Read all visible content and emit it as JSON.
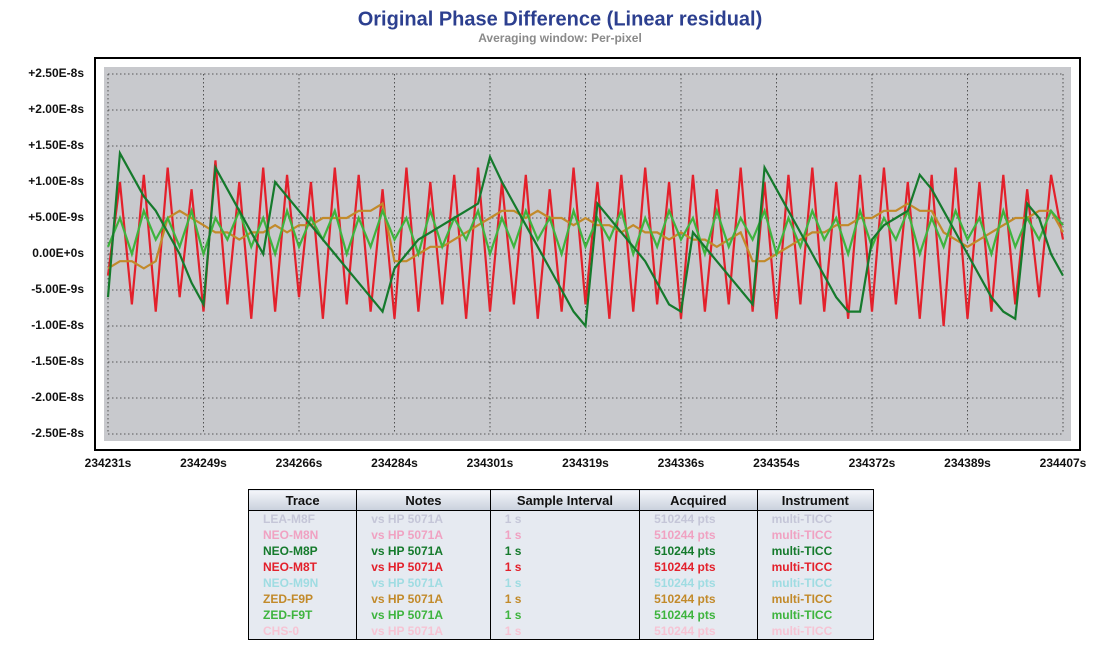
{
  "chart_data": {
    "type": "line",
    "title": "Original Phase Difference (Linear residual)",
    "subtitle": "Averaging window: Per-pixel",
    "x": [
      234231,
      234233.2,
      234235.4,
      234237.6,
      234239.8,
      234242,
      234244.2,
      234246.4,
      234248.6,
      234250.8,
      234253,
      234255.2,
      234257.4,
      234259.6,
      234261.8,
      234264,
      234266.2,
      234268.4,
      234270.6,
      234272.8,
      234275,
      234277.2,
      234279.4,
      234281.6,
      234283.8,
      234286,
      234288.2,
      234290.4,
      234292.6,
      234294.8,
      234297,
      234299.2,
      234301.4,
      234303.6,
      234305.8,
      234308,
      234310.2,
      234312.4,
      234314.6,
      234316.8,
      234319,
      234321.2,
      234323.4,
      234325.6,
      234327.8,
      234330,
      234332.2,
      234334.4,
      234336.6,
      234338.8,
      234341,
      234343.2,
      234345.4,
      234347.6,
      234349.8,
      234352,
      234354.2,
      234356.4,
      234358.6,
      234360.8,
      234363,
      234365.2,
      234367.4,
      234369.6,
      234371.8,
      234374,
      234376.2,
      234378.4,
      234380.6,
      234382.8,
      234385,
      234387.2,
      234389.4,
      234391.6,
      234393.8,
      234396,
      234398.2,
      234400.4,
      234402.6,
      234404.8,
      234407
    ],
    "series": [
      {
        "color": "#e3202b",
        "values": [
          -3e-09,
          1e-08,
          -7e-09,
          1.1e-08,
          -8e-09,
          1.2e-08,
          -6e-09,
          9e-09,
          -8e-09,
          1.3e-08,
          -7e-09,
          1e-08,
          -9e-09,
          1.2e-08,
          -8e-09,
          1.1e-08,
          -6e-09,
          1e-08,
          -9e-09,
          1.2e-08,
          -7e-09,
          1.1e-08,
          -8e-09,
          9e-09,
          -9e-09,
          1.2e-08,
          -8e-09,
          1e-08,
          -7e-09,
          1.1e-08,
          -9e-09,
          1.2e-08,
          -8e-09,
          1e-08,
          -7e-09,
          1.1e-08,
          -9e-09,
          9e-09,
          -8e-09,
          1.2e-08,
          -7e-09,
          1e-08,
          -9e-09,
          1.1e-08,
          -8e-09,
          1.2e-08,
          -7e-09,
          1e-08,
          -9e-09,
          1.1e-08,
          -8e-09,
          9e-09,
          -7e-09,
          1.2e-08,
          -8e-09,
          1e-08,
          -9e-09,
          1.1e-08,
          -7e-09,
          1.2e-08,
          -8e-09,
          1e-08,
          -9e-09,
          1.1e-08,
          -8e-09,
          1.2e-08,
          -7e-09,
          1e-08,
          -9e-09,
          1.1e-08,
          -1e-08,
          1.2e-08,
          -9e-09,
          1e-08,
          -8e-09,
          1.1e-08,
          -7e-09,
          9e-09,
          -6e-09,
          1.1e-08,
          2e-09
        ]
      },
      {
        "color": "#c28a2a",
        "values": [
          -2e-09,
          -1e-09,
          -1e-09,
          -2e-09,
          -1e-09,
          5e-09,
          6e-09,
          5e-09,
          4e-09,
          3e-09,
          3e-09,
          2e-09,
          3e-09,
          3e-09,
          4e-09,
          3e-09,
          4e-09,
          4e-09,
          5e-09,
          5e-09,
          5e-09,
          6e-09,
          6e-09,
          7e-09,
          -1e-09,
          -1e-09,
          0,
          1e-09,
          1e-09,
          2e-09,
          3e-09,
          4e-09,
          5e-09,
          6e-09,
          6e-09,
          5e-09,
          6e-09,
          5e-09,
          5e-09,
          4e-09,
          5e-09,
          4e-09,
          4e-09,
          3e-09,
          4e-09,
          3e-09,
          3e-09,
          2e-09,
          3e-09,
          2e-09,
          2e-09,
          1e-09,
          2e-09,
          3e-09,
          -1e-09,
          -1e-09,
          0,
          1e-09,
          2e-09,
          3e-09,
          3e-09,
          4e-09,
          4e-09,
          5e-09,
          5e-09,
          6e-09,
          6e-09,
          7e-09,
          6e-09,
          6e-09,
          3e-09,
          2e-09,
          1e-09,
          2e-09,
          3e-09,
          4e-09,
          5e-09,
          5e-09,
          6e-09,
          6e-09,
          3e-09
        ]
      },
      {
        "color": "#3eb43e",
        "values": [
          1e-09,
          5e-09,
          0,
          6e-09,
          2e-09,
          5e-09,
          1e-09,
          6e-09,
          0,
          5e-09,
          2e-09,
          6e-09,
          1e-09,
          5e-09,
          0,
          6e-09,
          1e-09,
          5e-09,
          2e-09,
          6e-09,
          0,
          5e-09,
          1e-09,
          6e-09,
          2e-09,
          5e-09,
          0,
          6e-09,
          1e-09,
          5e-09,
          2e-09,
          6e-09,
          0,
          5e-09,
          1e-09,
          6e-09,
          2e-09,
          5e-09,
          0,
          6e-09,
          1e-09,
          5e-09,
          2e-09,
          6e-09,
          0,
          5e-09,
          1e-09,
          6e-09,
          2e-09,
          5e-09,
          0,
          6e-09,
          1e-09,
          5e-09,
          2e-09,
          6e-09,
          0,
          5e-09,
          1e-09,
          6e-09,
          2e-09,
          5e-09,
          0,
          6e-09,
          1e-09,
          5e-09,
          2e-09,
          6e-09,
          0,
          5e-09,
          1e-09,
          6e-09,
          2e-09,
          5e-09,
          0,
          6e-09,
          1e-09,
          5e-09,
          2e-09,
          6e-09,
          4e-09
        ]
      },
      {
        "color": "#157a2c",
        "values": [
          -6e-09,
          1.4e-08,
          1.1e-08,
          8e-09,
          6e-09,
          3e-09,
          0,
          -4e-09,
          -7e-09,
          1.2e-08,
          9e-09,
          6e-09,
          3e-09,
          0,
          1e-08,
          8e-09,
          6e-09,
          4e-09,
          2e-09,
          0,
          -2e-09,
          -4e-09,
          -6e-09,
          -8e-09,
          -2e-09,
          0,
          2e-09,
          3e-09,
          4e-09,
          5e-09,
          6e-09,
          7e-09,
          1.35e-08,
          1e-08,
          7e-09,
          4e-09,
          1e-09,
          -2e-09,
          -5e-09,
          -8e-09,
          -1e-08,
          7e-09,
          5e-09,
          3e-09,
          1e-09,
          -1e-09,
          -4e-09,
          -7e-09,
          -8e-09,
          3e-09,
          1e-09,
          -1e-09,
          -3e-09,
          -5e-09,
          -7e-09,
          1.2e-08,
          9e-09,
          6e-09,
          3e-09,
          0,
          -3e-09,
          -6e-09,
          -8e-09,
          -8e-09,
          2e-09,
          4e-09,
          5e-09,
          6e-09,
          1.1e-08,
          9e-09,
          6e-09,
          3e-09,
          0,
          -3e-09,
          -6e-09,
          -8e-09,
          -9e-09,
          7e-09,
          5e-09,
          0,
          -3e-09
        ]
      }
    ],
    "xlim": [
      234231,
      234407
    ],
    "xticks": [
      {
        "value": 234231,
        "label": "234231s"
      },
      {
        "value": 234248.6,
        "label": "234249s"
      },
      {
        "value": 234266.2,
        "label": "234266s"
      },
      {
        "value": 234283.8,
        "label": "234284s"
      },
      {
        "value": 234301.4,
        "label": "234301s"
      },
      {
        "value": 234319,
        "label": "234319s"
      },
      {
        "value": 234336.6,
        "label": "234336s"
      },
      {
        "value": 234354.2,
        "label": "234354s"
      },
      {
        "value": 234371.8,
        "label": "234372s"
      },
      {
        "value": 234389.4,
        "label": "234389s"
      },
      {
        "value": 234407,
        "label": "234407s"
      }
    ],
    "ylim": [
      -2.5e-08,
      2.5e-08
    ],
    "yticks": [
      {
        "value": 2.5e-08,
        "label": "+2.50E-8s"
      },
      {
        "value": 2e-08,
        "label": "+2.00E-8s"
      },
      {
        "value": 1.5e-08,
        "label": "+1.50E-8s"
      },
      {
        "value": 1e-08,
        "label": "+1.00E-8s"
      },
      {
        "value": 5e-09,
        "label": "+5.00E-9s"
      },
      {
        "value": 0,
        "label": "0.00E+0s"
      },
      {
        "value": -5e-09,
        "label": "-5.00E-9s"
      },
      {
        "value": -1e-08,
        "label": "-1.00E-8s"
      },
      {
        "value": -1.5e-08,
        "label": "-1.50E-8s"
      },
      {
        "value": -2e-08,
        "label": "-2.00E-8s"
      },
      {
        "value": -2.5e-08,
        "label": "-2.50E-8s"
      }
    ],
    "grid": true
  },
  "table": {
    "headers": [
      "Trace",
      "Notes",
      "Sample Interval",
      "Acquired",
      "Instrument"
    ],
    "rows": [
      {
        "color": "#c5c6d8",
        "cells": [
          "LEA-M8F",
          "vs HP 5071A",
          "1 s",
          "510244 pts",
          "multi-TICC"
        ]
      },
      {
        "color": "#f0a2c2",
        "cells": [
          "NEO-M8N",
          "vs HP 5071A",
          "1 s",
          "510244 pts",
          "multi-TICC"
        ]
      },
      {
        "color": "#157a2c",
        "cells": [
          "NEO-M8P",
          "vs HP 5071A",
          "1 s",
          "510244 pts",
          "multi-TICC"
        ]
      },
      {
        "color": "#e3202b",
        "cells": [
          "NEO-M8T",
          "vs HP 5071A",
          "1 s",
          "510244 pts",
          "multi-TICC"
        ]
      },
      {
        "color": "#9fdce2",
        "cells": [
          "NEO-M9N",
          "vs HP 5071A",
          "1 s",
          "510244 pts",
          "multi-TICC"
        ]
      },
      {
        "color": "#c28a2a",
        "cells": [
          "ZED-F9P",
          "vs HP 5071A",
          "1 s",
          "510244 pts",
          "multi-TICC"
        ]
      },
      {
        "color": "#3eb43e",
        "cells": [
          "ZED-F9T",
          "vs HP 5071A",
          "1 s",
          "510244 pts",
          "multi-TICC"
        ]
      },
      {
        "color": "#f6c4d4",
        "cells": [
          "CHS-0",
          "vs HP 5071A",
          "1 s",
          "510244 pts",
          "multi-TICC"
        ]
      }
    ]
  }
}
